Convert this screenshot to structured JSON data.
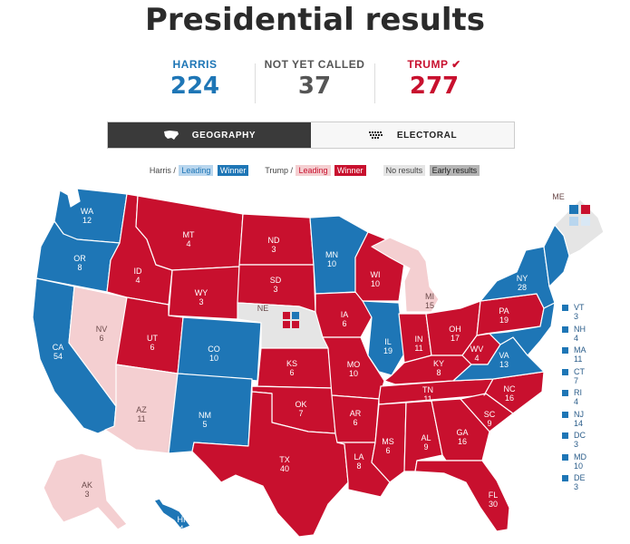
{
  "title": "Presidential results",
  "tally": {
    "harris": {
      "label": "HARRIS",
      "value": "224"
    },
    "notcalled": {
      "label": "NOT YET CALLED",
      "value": "37"
    },
    "trump": {
      "label": "TRUMP",
      "value": "277",
      "check": "✔"
    }
  },
  "toggle": {
    "geography": "GEOGRAPHY",
    "electoral": "ELECTORAL"
  },
  "legend": {
    "harris": "Harris /",
    "leading": "Leading",
    "winner": "Winner",
    "trump": "Trump /",
    "leading2": "Leading",
    "winner2": "Winner",
    "no_results": "No results",
    "early_results": "Early results"
  },
  "colors": {
    "harris": "#1e76b6",
    "trump": "#c8102e",
    "trump_leading": "#f4cfd1",
    "harris_leading": "#b9d6ee",
    "no_results": "#e5e5e5",
    "early": "#b5b5b5"
  },
  "states": [
    {
      "abbr": "WA",
      "votes": "12",
      "result": "harris"
    },
    {
      "abbr": "OR",
      "votes": "8",
      "result": "harris"
    },
    {
      "abbr": "CA",
      "votes": "54",
      "result": "harris"
    },
    {
      "abbr": "NV",
      "votes": "6",
      "result": "trump-leading"
    },
    {
      "abbr": "ID",
      "votes": "4",
      "result": "trump"
    },
    {
      "abbr": "MT",
      "votes": "4",
      "result": "trump"
    },
    {
      "abbr": "WY",
      "votes": "3",
      "result": "trump"
    },
    {
      "abbr": "UT",
      "votes": "6",
      "result": "trump"
    },
    {
      "abbr": "AZ",
      "votes": "11",
      "result": "trump-leading"
    },
    {
      "abbr": "CO",
      "votes": "10",
      "result": "harris"
    },
    {
      "abbr": "NM",
      "votes": "5",
      "result": "harris"
    },
    {
      "abbr": "ND",
      "votes": "3",
      "result": "trump"
    },
    {
      "abbr": "SD",
      "votes": "3",
      "result": "trump"
    },
    {
      "abbr": "NE",
      "votes": "",
      "result": "split"
    },
    {
      "abbr": "KS",
      "votes": "6",
      "result": "trump"
    },
    {
      "abbr": "OK",
      "votes": "7",
      "result": "trump"
    },
    {
      "abbr": "TX",
      "votes": "40",
      "result": "trump"
    },
    {
      "abbr": "MN",
      "votes": "10",
      "result": "harris"
    },
    {
      "abbr": "IA",
      "votes": "6",
      "result": "trump"
    },
    {
      "abbr": "MO",
      "votes": "10",
      "result": "trump"
    },
    {
      "abbr": "AR",
      "votes": "6",
      "result": "trump"
    },
    {
      "abbr": "LA",
      "votes": "8",
      "result": "trump"
    },
    {
      "abbr": "WI",
      "votes": "10",
      "result": "trump"
    },
    {
      "abbr": "IL",
      "votes": "19",
      "result": "harris"
    },
    {
      "abbr": "MI",
      "votes": "15",
      "result": "trump-leading"
    },
    {
      "abbr": "IN",
      "votes": "11",
      "result": "trump"
    },
    {
      "abbr": "OH",
      "votes": "17",
      "result": "trump"
    },
    {
      "abbr": "KY",
      "votes": "8",
      "result": "trump"
    },
    {
      "abbr": "TN",
      "votes": "11",
      "result": "trump"
    },
    {
      "abbr": "MS",
      "votes": "6",
      "result": "trump"
    },
    {
      "abbr": "AL",
      "votes": "9",
      "result": "trump"
    },
    {
      "abbr": "GA",
      "votes": "16",
      "result": "trump"
    },
    {
      "abbr": "FL",
      "votes": "30",
      "result": "trump"
    },
    {
      "abbr": "SC",
      "votes": "9",
      "result": "trump"
    },
    {
      "abbr": "NC",
      "votes": "16",
      "result": "trump"
    },
    {
      "abbr": "VA",
      "votes": "13",
      "result": "harris"
    },
    {
      "abbr": "WV",
      "votes": "4",
      "result": "trump"
    },
    {
      "abbr": "PA",
      "votes": "19",
      "result": "trump"
    },
    {
      "abbr": "NY",
      "votes": "28",
      "result": "harris"
    },
    {
      "abbr": "ME",
      "votes": "",
      "result": "split"
    },
    {
      "abbr": "AK",
      "votes": "3",
      "result": "trump-leading"
    },
    {
      "abbr": "HI",
      "votes": "4",
      "result": "harris"
    }
  ],
  "small_states": [
    {
      "abbr": "VT",
      "votes": "3"
    },
    {
      "abbr": "NH",
      "votes": "4"
    },
    {
      "abbr": "MA",
      "votes": "11"
    },
    {
      "abbr": "CT",
      "votes": "7"
    },
    {
      "abbr": "RI",
      "votes": "4"
    },
    {
      "abbr": "NJ",
      "votes": "14"
    },
    {
      "abbr": "DC",
      "votes": "3"
    },
    {
      "abbr": "MD",
      "votes": "10"
    },
    {
      "abbr": "DE",
      "votes": "3"
    }
  ]
}
